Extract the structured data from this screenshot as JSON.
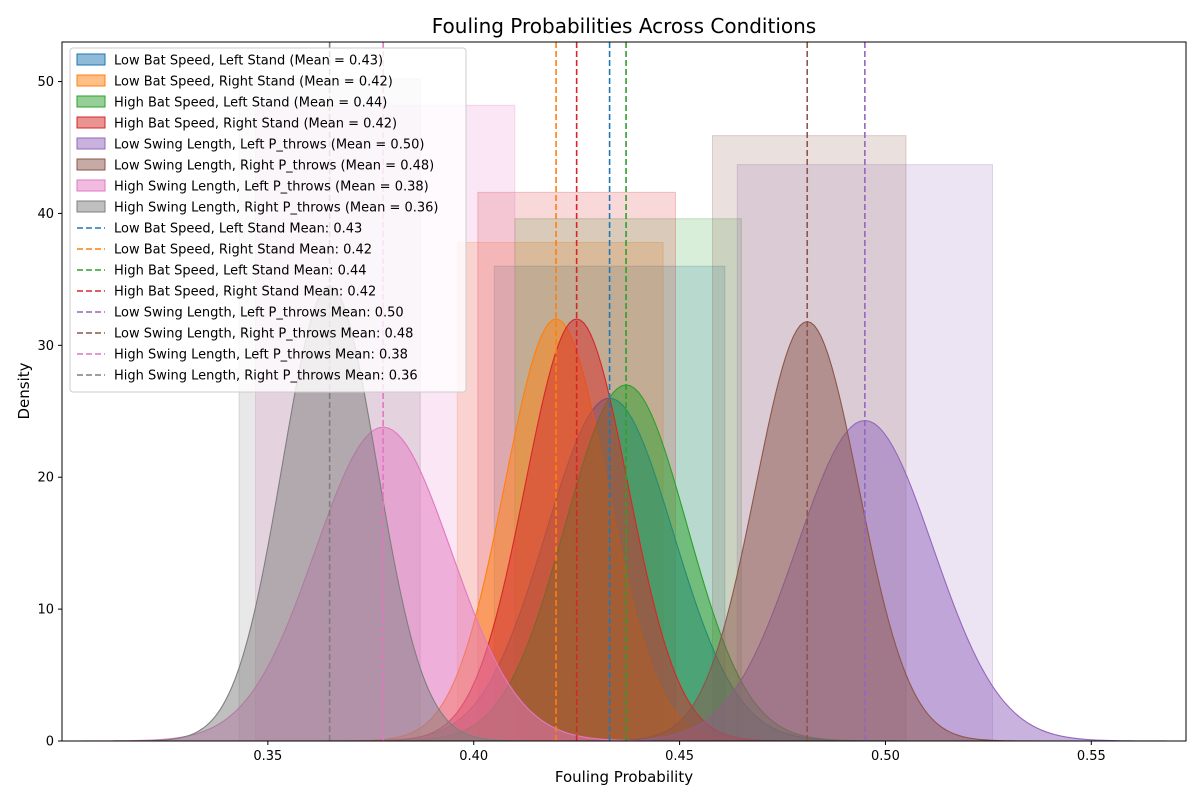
{
  "chart_data": {
    "type": "area",
    "title": "Fouling Probabilities Across Conditions",
    "xlabel": "Fouling Probability",
    "ylabel": "Density",
    "xlim": [
      0.3,
      0.573
    ],
    "ylim": [
      0,
      53
    ],
    "xticks": [
      0.35,
      0.4,
      0.45,
      0.5,
      0.55
    ],
    "xtick_labels": [
      "0.35",
      "0.40",
      "0.45",
      "0.50",
      "0.55"
    ],
    "yticks": [
      0,
      10,
      20,
      30,
      40,
      50
    ],
    "ytick_labels": [
      "0",
      "10",
      "20",
      "30",
      "40",
      "50"
    ],
    "grid": false,
    "legend_position": "top-left",
    "series": [
      {
        "name": "Low Bat Speed, Left Stand (Mean = 0.43)",
        "mean_label": "Low Bat Speed, Left Stand Mean: 0.43",
        "color": "#1f77b4",
        "mean": 0.433,
        "sd": 0.0155,
        "peak": 26,
        "hist_range": [
          0.405,
          0.461
        ],
        "hist_height": 36
      },
      {
        "name": "Low Bat Speed, Right Stand (Mean = 0.42)",
        "mean_label": "Low Bat Speed, Right Stand Mean: 0.42",
        "color": "#ff7f0e",
        "mean": 0.42,
        "sd": 0.0125,
        "peak": 32,
        "hist_range": [
          0.396,
          0.446
        ],
        "hist_height": 37.8
      },
      {
        "name": "High Bat Speed, Left Stand (Mean = 0.44)",
        "mean_label": "High Bat Speed, Left Stand Mean: 0.44",
        "color": "#2ca02c",
        "mean": 0.437,
        "sd": 0.0148,
        "peak": 27,
        "hist_range": [
          0.41,
          0.465
        ],
        "hist_height": 39.6
      },
      {
        "name": "High Bat Speed, Right Stand (Mean = 0.42)",
        "mean_label": "High Bat Speed, Right Stand Mean: 0.42",
        "color": "#d62728",
        "mean": 0.425,
        "sd": 0.0125,
        "peak": 32,
        "hist_range": [
          0.401,
          0.449
        ],
        "hist_height": 41.6
      },
      {
        "name": "Low Swing Length, Left P_throws (Mean = 0.50)",
        "mean_label": "Low Swing Length, Left P_throws Mean: 0.50",
        "color": "#9467bd",
        "mean": 0.495,
        "sd": 0.0165,
        "peak": 24.3,
        "hist_range": [
          0.464,
          0.526
        ],
        "hist_height": 43.7
      },
      {
        "name": "Low Swing Length, Right P_throws (Mean = 0.48)",
        "mean_label": "Low Swing Length, Right P_throws Mean: 0.48",
        "color": "#8c564b",
        "mean": 0.481,
        "sd": 0.0125,
        "peak": 31.8,
        "hist_range": [
          0.458,
          0.505
        ],
        "hist_height": 45.9
      },
      {
        "name": "High Swing Length, Left P_throws (Mean = 0.38)",
        "mean_label": "High Swing Length, Left P_throws Mean: 0.38",
        "color": "#e377c2",
        "mean": 0.378,
        "sd": 0.0165,
        "peak": 23.8,
        "hist_range": [
          0.347,
          0.41
        ],
        "hist_height": 48.2
      },
      {
        "name": "High Swing Length, Right P_throws (Mean = 0.36)",
        "mean_label": "High Swing Length, Right P_throws Mean: 0.36",
        "color": "#7f7f7f",
        "mean": 0.365,
        "sd": 0.0115,
        "peak": 34.5,
        "hist_range": [
          0.343,
          0.387
        ],
        "hist_height": 50.2
      }
    ]
  }
}
